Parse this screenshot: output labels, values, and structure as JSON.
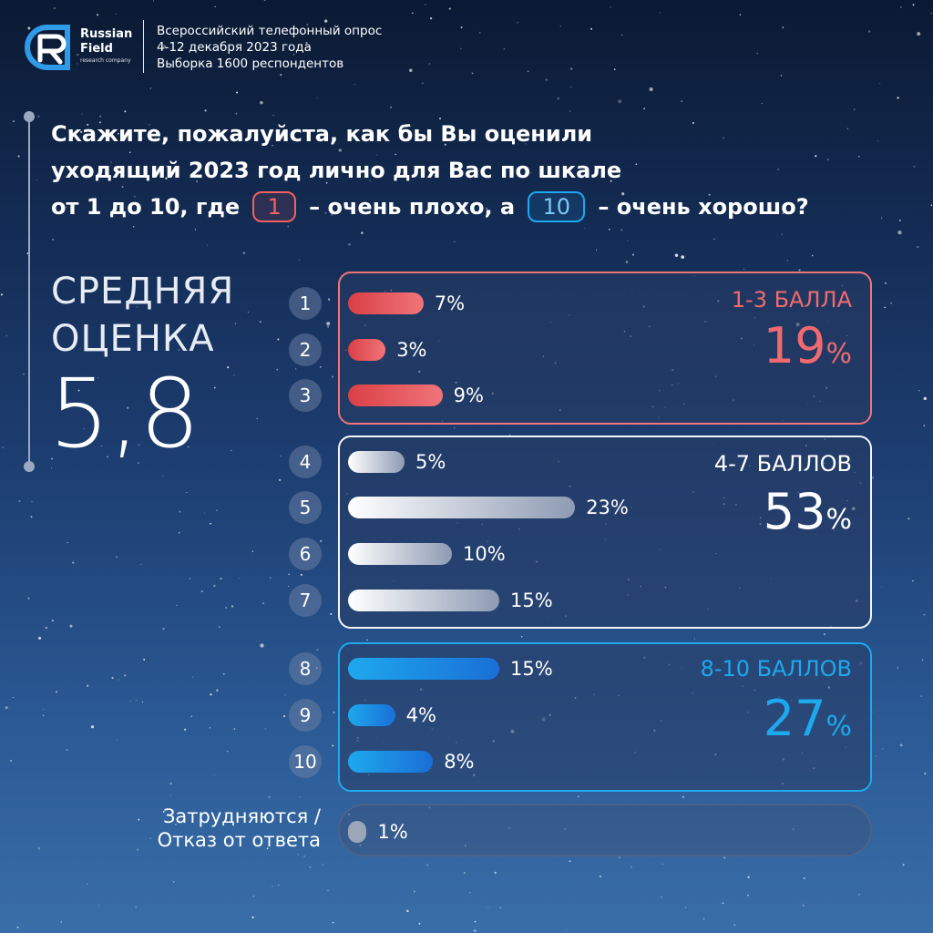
{
  "brand": {
    "line1": "Russian",
    "line2": "Field",
    "line3": "research company"
  },
  "survey": {
    "line1": "Всероссийский телефонный опрос",
    "line2": "4-12 декабря 2023 года",
    "line3": "Выборка 1600 респондентов"
  },
  "question": {
    "line1": "Скажите, пожалуйста, как бы Вы оценили",
    "line2": "уходящий 2023 год лично для Вас по шкале",
    "line3_a": "от 1 до 10, где",
    "badge_low": "1",
    "line3_b": "– очень плохо, а",
    "badge_high": "10",
    "line3_c": "– очень хорошо?"
  },
  "average": {
    "label_1": "СРЕДНЯЯ",
    "label_2": "ОЦЕНКА",
    "value": "5,8"
  },
  "groups": [
    {
      "label": "1-3 БАЛЛА",
      "total": "19",
      "pct_sign": "%",
      "color": "#f06a6f"
    },
    {
      "label": "4-7 БАЛЛОВ",
      "total": "53",
      "pct_sign": "%",
      "color": "#ffffff"
    },
    {
      "label": "8-10 БАЛЛОВ",
      "total": "27",
      "pct_sign": "%",
      "color": "#1ea8ee"
    }
  ],
  "dont_know": {
    "line1": "Затрудняются /",
    "line2": "Отказ от ответа",
    "value": 1,
    "value_label": "1%"
  },
  "chart_data": {
    "type": "bar",
    "title": "",
    "categories": [
      "1",
      "2",
      "3",
      "4",
      "5",
      "6",
      "7",
      "8",
      "9",
      "10",
      "Затрудняются / Отказ от ответа"
    ],
    "values": [
      7,
      3,
      9,
      5,
      23,
      10,
      15,
      15,
      4,
      8,
      1
    ],
    "value_labels": [
      "7%",
      "3%",
      "9%",
      "5%",
      "23%",
      "10%",
      "15%",
      "15%",
      "4%",
      "8%",
      "1%"
    ],
    "xlabel": "",
    "ylabel": "",
    "colors": {
      "low": [
        "#d94046",
        "#f07479"
      ],
      "mid": [
        "#ffffff",
        "#8e9bb3"
      ],
      "high": [
        "#1ea8ee",
        "#1a6fd6"
      ],
      "dont_know": [
        "#9ba6b8",
        "#9ba6b8"
      ]
    }
  }
}
